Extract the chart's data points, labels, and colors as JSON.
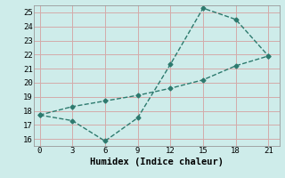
{
  "xlabel": "Humidex (Indice chaleur)",
  "x": [
    0,
    3,
    6,
    9,
    12,
    15,
    18,
    21
  ],
  "line1_y": [
    17.7,
    17.3,
    15.85,
    17.5,
    21.3,
    25.3,
    24.5,
    21.9
  ],
  "line2_y": [
    17.7,
    18.3,
    18.7,
    19.1,
    19.6,
    20.2,
    21.2,
    21.9
  ],
  "line_color": "#2d7a6e",
  "bg_color": "#ceecea",
  "grid_color": "#d4aaaa",
  "xlim": [
    -0.5,
    22
  ],
  "ylim": [
    15.5,
    25.5
  ],
  "xticks": [
    0,
    3,
    6,
    9,
    12,
    15,
    18,
    21
  ],
  "yticks": [
    16,
    17,
    18,
    19,
    20,
    21,
    22,
    23,
    24,
    25
  ],
  "marker": "D",
  "markersize": 2.5,
  "linewidth": 1.0,
  "tick_fontsize": 6.5,
  "xlabel_fontsize": 7.5
}
